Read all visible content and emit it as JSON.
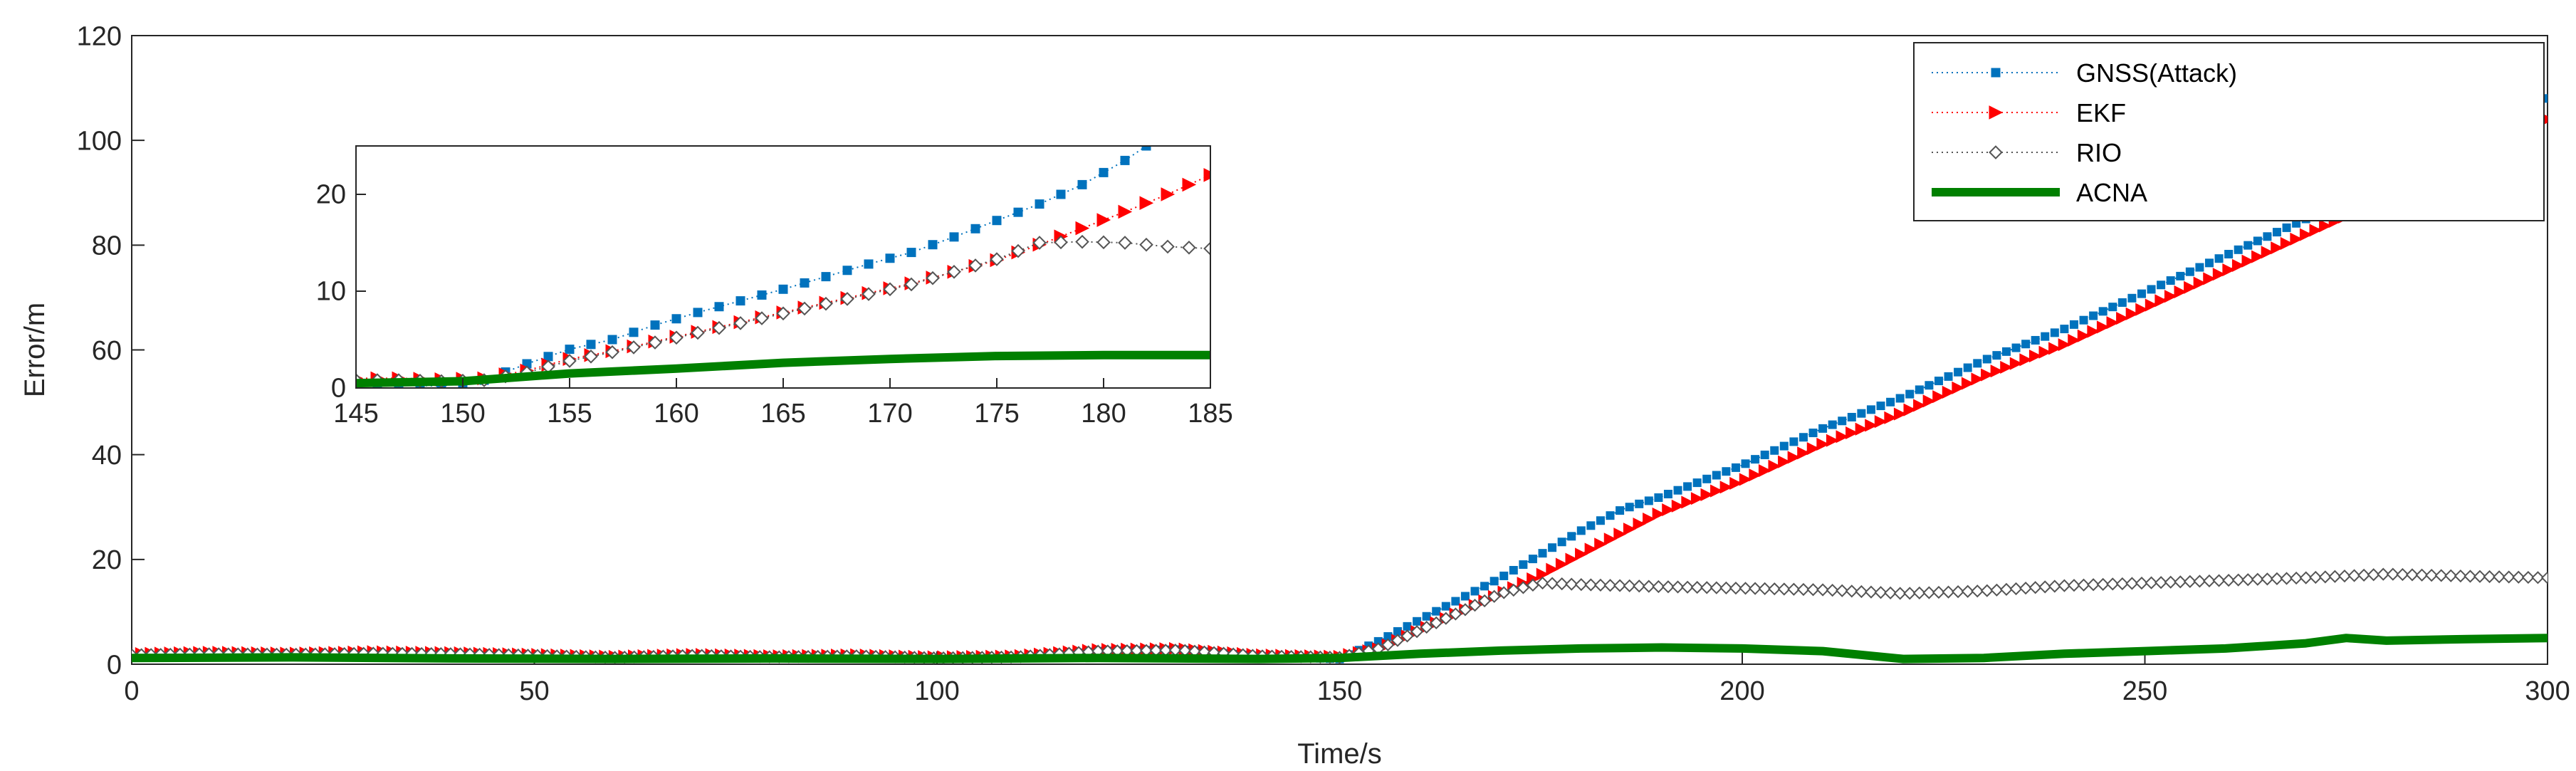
{
  "chart_data": [
    {
      "type": "line",
      "role": "main",
      "title": "",
      "xlabel": "Time/s",
      "ylabel": "Error/m",
      "xlim": [
        0,
        300
      ],
      "ylim": [
        0,
        120
      ],
      "xticks": [
        0,
        50,
        100,
        150,
        200,
        250,
        300
      ],
      "yticks": [
        0,
        20,
        40,
        60,
        80,
        100,
        120
      ],
      "xtick_labels": [
        "0",
        "50",
        "100",
        "150",
        "200",
        "250",
        "300"
      ],
      "ytick_labels": [
        "0",
        "20",
        "40",
        "60",
        "80",
        "100",
        "120"
      ],
      "grid": false,
      "legend": "top-right",
      "series": [
        {
          "name": "GNSS(Attack)",
          "color": "#0072bd",
          "marker": "square",
          "line": "dotted",
          "x": [
            0,
            10,
            20,
            30,
            40,
            50,
            60,
            70,
            80,
            90,
            100,
            110,
            120,
            130,
            140,
            150,
            155,
            160,
            165,
            170,
            175,
            180,
            185,
            190,
            200,
            210,
            220,
            230,
            240,
            250,
            260,
            270,
            280,
            290,
            300
          ],
          "y": [
            1.5,
            1.8,
            1.6,
            1.9,
            1.7,
            1.4,
            1.2,
            1.6,
            1.3,
            1.5,
            1.0,
            1.2,
            2.5,
            2.8,
            1.5,
            1.0,
            4.5,
            8.5,
            12.5,
            16.5,
            21,
            25.5,
            29.5,
            32,
            38,
            45,
            51,
            58,
            64,
            71,
            78,
            85,
            92,
            100,
            108
          ]
        },
        {
          "name": "EKF",
          "color": "#ff0000",
          "marker": "triangle-right",
          "line": "dotted",
          "x": [
            0,
            10,
            20,
            30,
            40,
            50,
            60,
            70,
            80,
            90,
            100,
            110,
            120,
            130,
            140,
            150,
            155,
            160,
            165,
            170,
            175,
            180,
            185,
            190,
            200,
            210,
            220,
            230,
            240,
            250,
            260,
            270,
            280,
            290,
            300
          ],
          "y": [
            2.0,
            2.3,
            2.1,
            2.4,
            2.2,
            1.9,
            1.5,
            1.9,
            1.6,
            1.8,
            1.4,
            1.6,
            2.8,
            3.0,
            1.8,
            1.5,
            3.0,
            6.5,
            10,
            13.5,
            17,
            21,
            25,
            29,
            35,
            42,
            48,
            55,
            61,
            68,
            75,
            82,
            89,
            96,
            104
          ]
        },
        {
          "name": "RIO",
          "color": "#555555",
          "marker": "diamond",
          "line": "dotted",
          "x": [
            0,
            10,
            20,
            30,
            40,
            50,
            60,
            70,
            80,
            90,
            100,
            110,
            120,
            130,
            140,
            150,
            155,
            160,
            165,
            170,
            175,
            180,
            185,
            190,
            200,
            210,
            220,
            230,
            240,
            250,
            260,
            270,
            280,
            290,
            300
          ],
          "y": [
            1.8,
            2.0,
            1.9,
            2.1,
            2.0,
            1.7,
            1.3,
            1.7,
            1.4,
            1.6,
            1.2,
            1.4,
            2.5,
            2.7,
            1.6,
            1.3,
            3.0,
            6.5,
            10,
            13.5,
            15.5,
            15.2,
            15.0,
            14.8,
            14.5,
            14.2,
            13.5,
            14.0,
            15.0,
            15.5,
            16.0,
            16.5,
            17.2,
            16.8,
            16.5
          ]
        },
        {
          "name": "ACNA",
          "color": "#008000",
          "marker": "none",
          "line": "solid",
          "x": [
            0,
            20,
            40,
            60,
            80,
            100,
            120,
            140,
            150,
            160,
            170,
            180,
            190,
            200,
            210,
            220,
            230,
            240,
            250,
            260,
            270,
            275,
            280,
            290,
            300
          ],
          "y": [
            1.2,
            1.3,
            1.1,
            1.0,
            1.1,
            1.0,
            1.2,
            1.0,
            1.2,
            2.0,
            2.6,
            3.0,
            3.2,
            3.0,
            2.5,
            1.0,
            1.2,
            2.0,
            2.5,
            3.0,
            4.0,
            5.0,
            4.5,
            4.8,
            5.0
          ]
        }
      ]
    },
    {
      "type": "line",
      "role": "inset",
      "title": "",
      "xlabel": "",
      "ylabel": "",
      "xlim": [
        145,
        185
      ],
      "ylim": [
        0,
        25
      ],
      "xticks": [
        145,
        150,
        155,
        160,
        165,
        170,
        175,
        180,
        185
      ],
      "yticks": [
        0,
        10,
        20
      ],
      "xtick_labels": [
        "145",
        "150",
        "155",
        "160",
        "165",
        "170",
        "175",
        "180",
        "185"
      ],
      "ytick_labels": [
        "0",
        "10",
        "20"
      ],
      "grid": false,
      "series": [
        {
          "name": "GNSS(Attack)",
          "color": "#0072bd",
          "marker": "square",
          "x": [
            145,
            147,
            149,
            151,
            153,
            155,
            157,
            159,
            161,
            163,
            165,
            167,
            169,
            171,
            173,
            175,
            177,
            179,
            181,
            182
          ],
          "y": [
            0.5,
            0.3,
            0.2,
            0.8,
            2.5,
            4.0,
            5.0,
            6.5,
            7.8,
            9.0,
            10.2,
            11.5,
            12.8,
            14.0,
            15.6,
            17.3,
            19.0,
            21.0,
            23.5,
            25
          ]
        },
        {
          "name": "EKF",
          "color": "#ff0000",
          "marker": "triangle-right",
          "x": [
            145,
            147,
            149,
            151,
            153,
            155,
            157,
            159,
            161,
            163,
            165,
            167,
            169,
            171,
            173,
            175,
            177,
            179,
            181,
            183,
            185
          ],
          "y": [
            1.0,
            1.0,
            0.9,
            1.0,
            1.8,
            3.0,
            3.8,
            4.8,
            5.8,
            6.8,
            7.8,
            8.8,
            9.8,
            10.8,
            12.0,
            13.2,
            14.8,
            16.5,
            18.2,
            20.0,
            22.0
          ]
        },
        {
          "name": "RIO",
          "color": "#555555",
          "marker": "diamond",
          "x": [
            145,
            147,
            149,
            151,
            153,
            155,
            157,
            159,
            161,
            163,
            165,
            167,
            169,
            171,
            173,
            175,
            177,
            179,
            181,
            183,
            185
          ],
          "y": [
            0.8,
            0.8,
            0.7,
            0.8,
            1.6,
            2.8,
            3.7,
            4.7,
            5.7,
            6.7,
            7.7,
            8.7,
            9.7,
            10.7,
            12.0,
            13.3,
            15.0,
            15.1,
            15.0,
            14.6,
            14.4
          ]
        },
        {
          "name": "ACNA",
          "color": "#008000",
          "marker": "none",
          "x": [
            145,
            150,
            155,
            160,
            165,
            170,
            175,
            180,
            185
          ],
          "y": [
            0.5,
            0.7,
            1.5,
            2.0,
            2.6,
            3.0,
            3.3,
            3.4,
            3.4
          ]
        }
      ]
    }
  ]
}
